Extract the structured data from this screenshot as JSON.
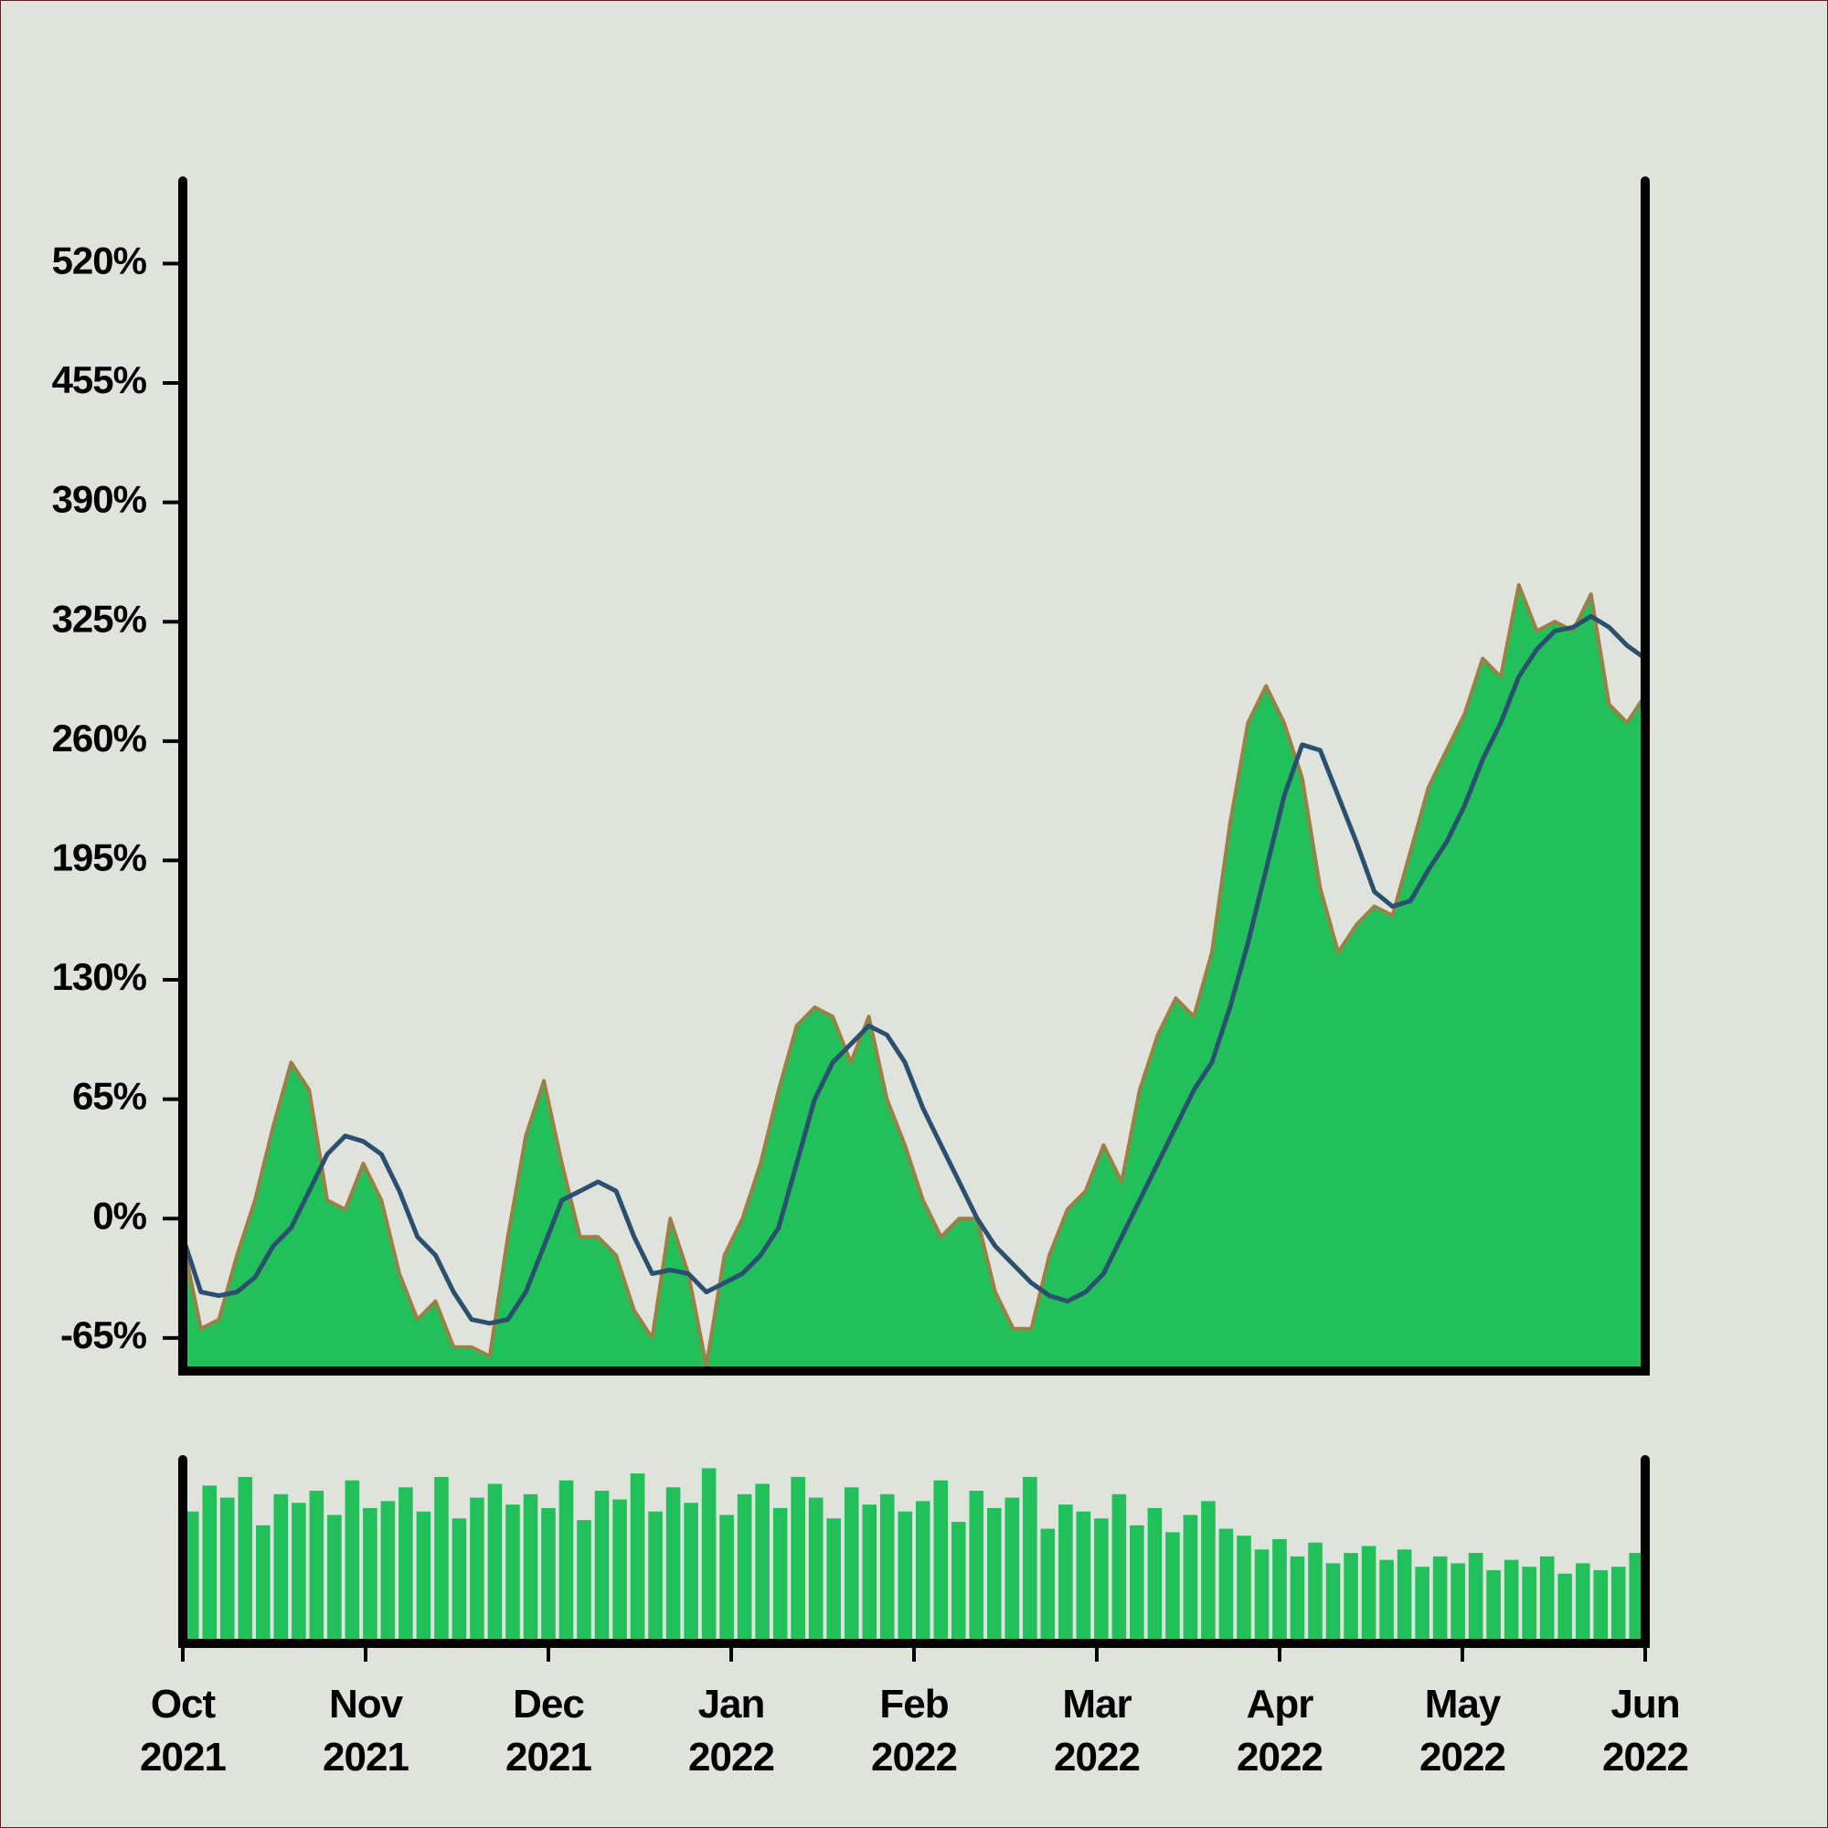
{
  "chart_data": [
    {
      "type": "area",
      "ylim": [
        -83,
        565
      ],
      "yticks": [
        {
          "value": -65,
          "label": "-65%"
        },
        {
          "value": 0,
          "label": "0%"
        },
        {
          "value": 65,
          "label": "65%"
        },
        {
          "value": 130,
          "label": "130%"
        },
        {
          "value": 195,
          "label": "195%"
        },
        {
          "value": 260,
          "label": "260%"
        },
        {
          "value": 325,
          "label": "325%"
        },
        {
          "value": 390,
          "label": "390%"
        },
        {
          "value": 455,
          "label": "455%"
        },
        {
          "value": 520,
          "label": "520%"
        }
      ],
      "series": [
        {
          "type": "area",
          "color": "#22c05a",
          "edge_color": "#9c7f45",
          "values": [
            -12,
            -60,
            -55,
            -20,
            10,
            50,
            85,
            70,
            10,
            5,
            30,
            10,
            -30,
            -55,
            -45,
            -70,
            -70,
            -75,
            -10,
            45,
            75,
            30,
            -10,
            -10,
            -20,
            -50,
            -65,
            0,
            -30,
            -80,
            -20,
            0,
            30,
            70,
            105,
            115,
            110,
            85,
            110,
            65,
            40,
            10,
            -10,
            0,
            0,
            -40,
            -60,
            -60,
            -20,
            5,
            15,
            40,
            20,
            70,
            100,
            120,
            110,
            145,
            215,
            270,
            290,
            270,
            240,
            180,
            145,
            160,
            170,
            165,
            200,
            235,
            255,
            275,
            305,
            295,
            345,
            320,
            325,
            320,
            340,
            280,
            270,
            285
          ]
        },
        {
          "type": "line",
          "color": "#2b4f6e",
          "values": [
            -10,
            -40,
            -42,
            -40,
            -32,
            -15,
            -5,
            15,
            35,
            45,
            42,
            35,
            15,
            -10,
            -20,
            -40,
            -55,
            -57,
            -55,
            -40,
            -15,
            10,
            15,
            20,
            15,
            -10,
            -30,
            -28,
            -30,
            -40,
            -35,
            -30,
            -20,
            -5,
            30,
            65,
            85,
            95,
            105,
            100,
            85,
            60,
            40,
            20,
            0,
            -15,
            -25,
            -35,
            -42,
            -45,
            -40,
            -30,
            -10,
            10,
            30,
            50,
            70,
            85,
            115,
            150,
            190,
            230,
            258,
            255,
            230,
            205,
            178,
            170,
            173,
            190,
            205,
            225,
            250,
            270,
            295,
            310,
            320,
            322,
            328,
            322,
            312,
            305
          ]
        }
      ]
    },
    {
      "type": "bar",
      "color": "#22c05a",
      "ylim": [
        0,
        100
      ],
      "values": [
        70,
        85,
        78,
        90,
        62,
        80,
        75,
        82,
        68,
        88,
        72,
        76,
        84,
        70,
        90,
        66,
        78,
        86,
        74,
        80,
        72,
        88,
        65,
        82,
        77,
        92,
        70,
        84,
        75,
        95,
        68,
        80,
        86,
        72,
        90,
        78,
        66,
        84,
        74,
        80,
        70,
        76,
        88,
        64,
        82,
        72,
        78,
        90,
        60,
        74,
        70,
        66,
        80,
        62,
        72,
        58,
        68,
        76,
        60,
        56,
        48,
        54,
        44,
        52,
        40,
        46,
        50,
        42,
        48,
        38,
        44,
        40,
        46,
        36,
        42,
        38,
        44,
        34,
        40,
        36,
        38,
        46
      ],
      "xticks": [
        "Oct 2021",
        "Nov 2021",
        "Dec 2021",
        "Jan 2022",
        "Feb 2022",
        "Mar 2022",
        "Apr 2022",
        "May 2022",
        "Jun 2022"
      ]
    }
  ]
}
